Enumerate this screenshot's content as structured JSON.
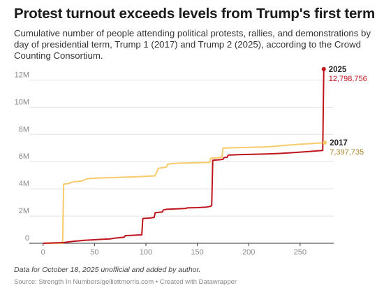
{
  "header": {
    "title": "Protest turnout exceeds levels from Trump's first term",
    "subtitle": "Cumulative number of people attending political protests, rallies, and demonstrations by day of presidential term, Trump 1 (2017) and Trump 2 (2025), according to the Crowd Counting Consortium."
  },
  "footer": {
    "note": "Data for October 18, 2025 unofficial and added by author.",
    "source": "Source: Strength In Numbers/gelliottmorris.com • Created with Datawrapper"
  },
  "colors": {
    "series_2025": "#c0141d",
    "series_2017": "#f7cb6a",
    "label_2017_value": "#a8842c",
    "grid": "#e3e3e3",
    "axis_text": "#888888"
  },
  "chart_data": {
    "type": "line",
    "xlabel": "",
    "ylabel": "",
    "xlim": [
      -10,
      282
    ],
    "ylim": [
      0,
      13000000
    ],
    "x_ticks": [
      0,
      50,
      100,
      150,
      200,
      250
    ],
    "x_tick_labels": [
      "0",
      "50",
      "100",
      "150",
      "200",
      "250"
    ],
    "y_ticks": [
      0,
      2000000,
      4000000,
      6000000,
      8000000,
      10000000,
      12000000
    ],
    "y_tick_labels": [
      "0",
      "2M",
      "4M",
      "6M",
      "8M",
      "10M",
      "12M"
    ],
    "grid": true,
    "legend": "end-of-line labels",
    "series": [
      {
        "name": "2017",
        "end_label": "7,397,735",
        "points": [
          [
            0,
            0
          ],
          [
            19,
            0
          ],
          [
            20,
            4350000
          ],
          [
            24,
            4380000
          ],
          [
            28,
            4480000
          ],
          [
            30,
            4520000
          ],
          [
            38,
            4580000
          ],
          [
            42,
            4720000
          ],
          [
            45,
            4760000
          ],
          [
            55,
            4800000
          ],
          [
            60,
            4810000
          ],
          [
            70,
            4830000
          ],
          [
            80,
            4860000
          ],
          [
            90,
            4890000
          ],
          [
            100,
            4920000
          ],
          [
            109,
            4960000
          ],
          [
            112,
            5500000
          ],
          [
            115,
            5550000
          ],
          [
            120,
            5600000
          ],
          [
            121,
            5800000
          ],
          [
            125,
            5860000
          ],
          [
            130,
            5880000
          ],
          [
            140,
            5900000
          ],
          [
            150,
            5920000
          ],
          [
            162,
            5940000
          ],
          [
            163,
            6250000
          ],
          [
            170,
            6290000
          ],
          [
            174,
            6320000
          ],
          [
            175,
            7000000
          ],
          [
            185,
            7020000
          ],
          [
            195,
            7040000
          ],
          [
            205,
            7060000
          ],
          [
            215,
            7080000
          ],
          [
            225,
            7120000
          ],
          [
            235,
            7200000
          ],
          [
            245,
            7250000
          ],
          [
            255,
            7300000
          ],
          [
            265,
            7350000
          ],
          [
            274,
            7397735
          ]
        ]
      },
      {
        "name": "2025",
        "end_label": "12,798,756",
        "points": [
          [
            0,
            0
          ],
          [
            20,
            50000
          ],
          [
            25,
            100000
          ],
          [
            30,
            150000
          ],
          [
            35,
            180000
          ],
          [
            40,
            220000
          ],
          [
            45,
            240000
          ],
          [
            50,
            260000
          ],
          [
            55,
            280000
          ],
          [
            60,
            300000
          ],
          [
            65,
            320000
          ],
          [
            70,
            380000
          ],
          [
            75,
            420000
          ],
          [
            79,
            450000
          ],
          [
            80,
            560000
          ],
          [
            85,
            580000
          ],
          [
            90,
            600000
          ],
          [
            96,
            620000
          ],
          [
            97,
            1820000
          ],
          [
            100,
            1840000
          ],
          [
            105,
            1860000
          ],
          [
            108,
            1900000
          ],
          [
            109,
            2250000
          ],
          [
            113,
            2280000
          ],
          [
            116,
            2300000
          ],
          [
            117,
            2450000
          ],
          [
            120,
            2500000
          ],
          [
            130,
            2530000
          ],
          [
            139,
            2560000
          ],
          [
            140,
            2600000
          ],
          [
            150,
            2620000
          ],
          [
            158,
            2650000
          ],
          [
            162,
            2700000
          ],
          [
            164,
            2760000
          ],
          [
            165,
            6100000
          ],
          [
            170,
            6130000
          ],
          [
            175,
            6170000
          ],
          [
            176,
            6300000
          ],
          [
            179,
            6320000
          ],
          [
            180,
            6480000
          ],
          [
            190,
            6510000
          ],
          [
            200,
            6530000
          ],
          [
            210,
            6550000
          ],
          [
            220,
            6570000
          ],
          [
            230,
            6600000
          ],
          [
            240,
            6650000
          ],
          [
            250,
            6700000
          ],
          [
            260,
            6750000
          ],
          [
            266,
            6790000
          ],
          [
            272,
            6820000
          ],
          [
            273,
            12798756
          ]
        ]
      }
    ]
  }
}
